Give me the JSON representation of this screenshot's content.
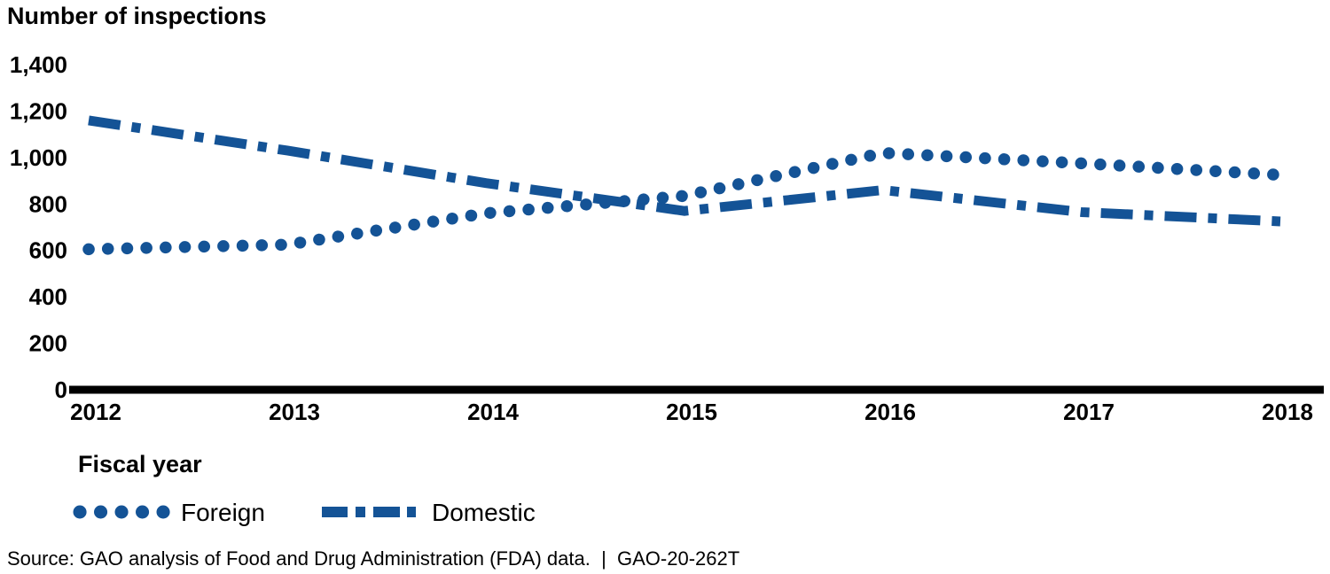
{
  "figure": {
    "source": "Source: GAO analysis of Food and Drug Administration (FDA) data.  |  GAO-20-262T"
  },
  "colors": {
    "line_blue": "#145396",
    "axis": "#000000"
  },
  "chart_data": {
    "type": "line",
    "title": "Number of inspections",
    "xlabel": "Fiscal year",
    "ylabel": "",
    "categories": [
      "2012",
      "2013",
      "2014",
      "2015",
      "2016",
      "2017",
      "2018"
    ],
    "series": [
      {
        "name": "Foreign",
        "style": "dotted",
        "values": [
          605,
          625,
          760,
          835,
          1020,
          975,
          925
        ]
      },
      {
        "name": "Domestic",
        "style": "dash-dot",
        "values": [
          1160,
          1030,
          890,
          770,
          860,
          765,
          725
        ]
      }
    ],
    "ylim": [
      0,
      1400
    ],
    "ytick_interval": 200,
    "ytick_labels": [
      "0",
      "200",
      "400",
      "600",
      "800",
      "1,000",
      "1,200",
      "1,400"
    ],
    "grid": false,
    "legend_position": "below-left"
  }
}
